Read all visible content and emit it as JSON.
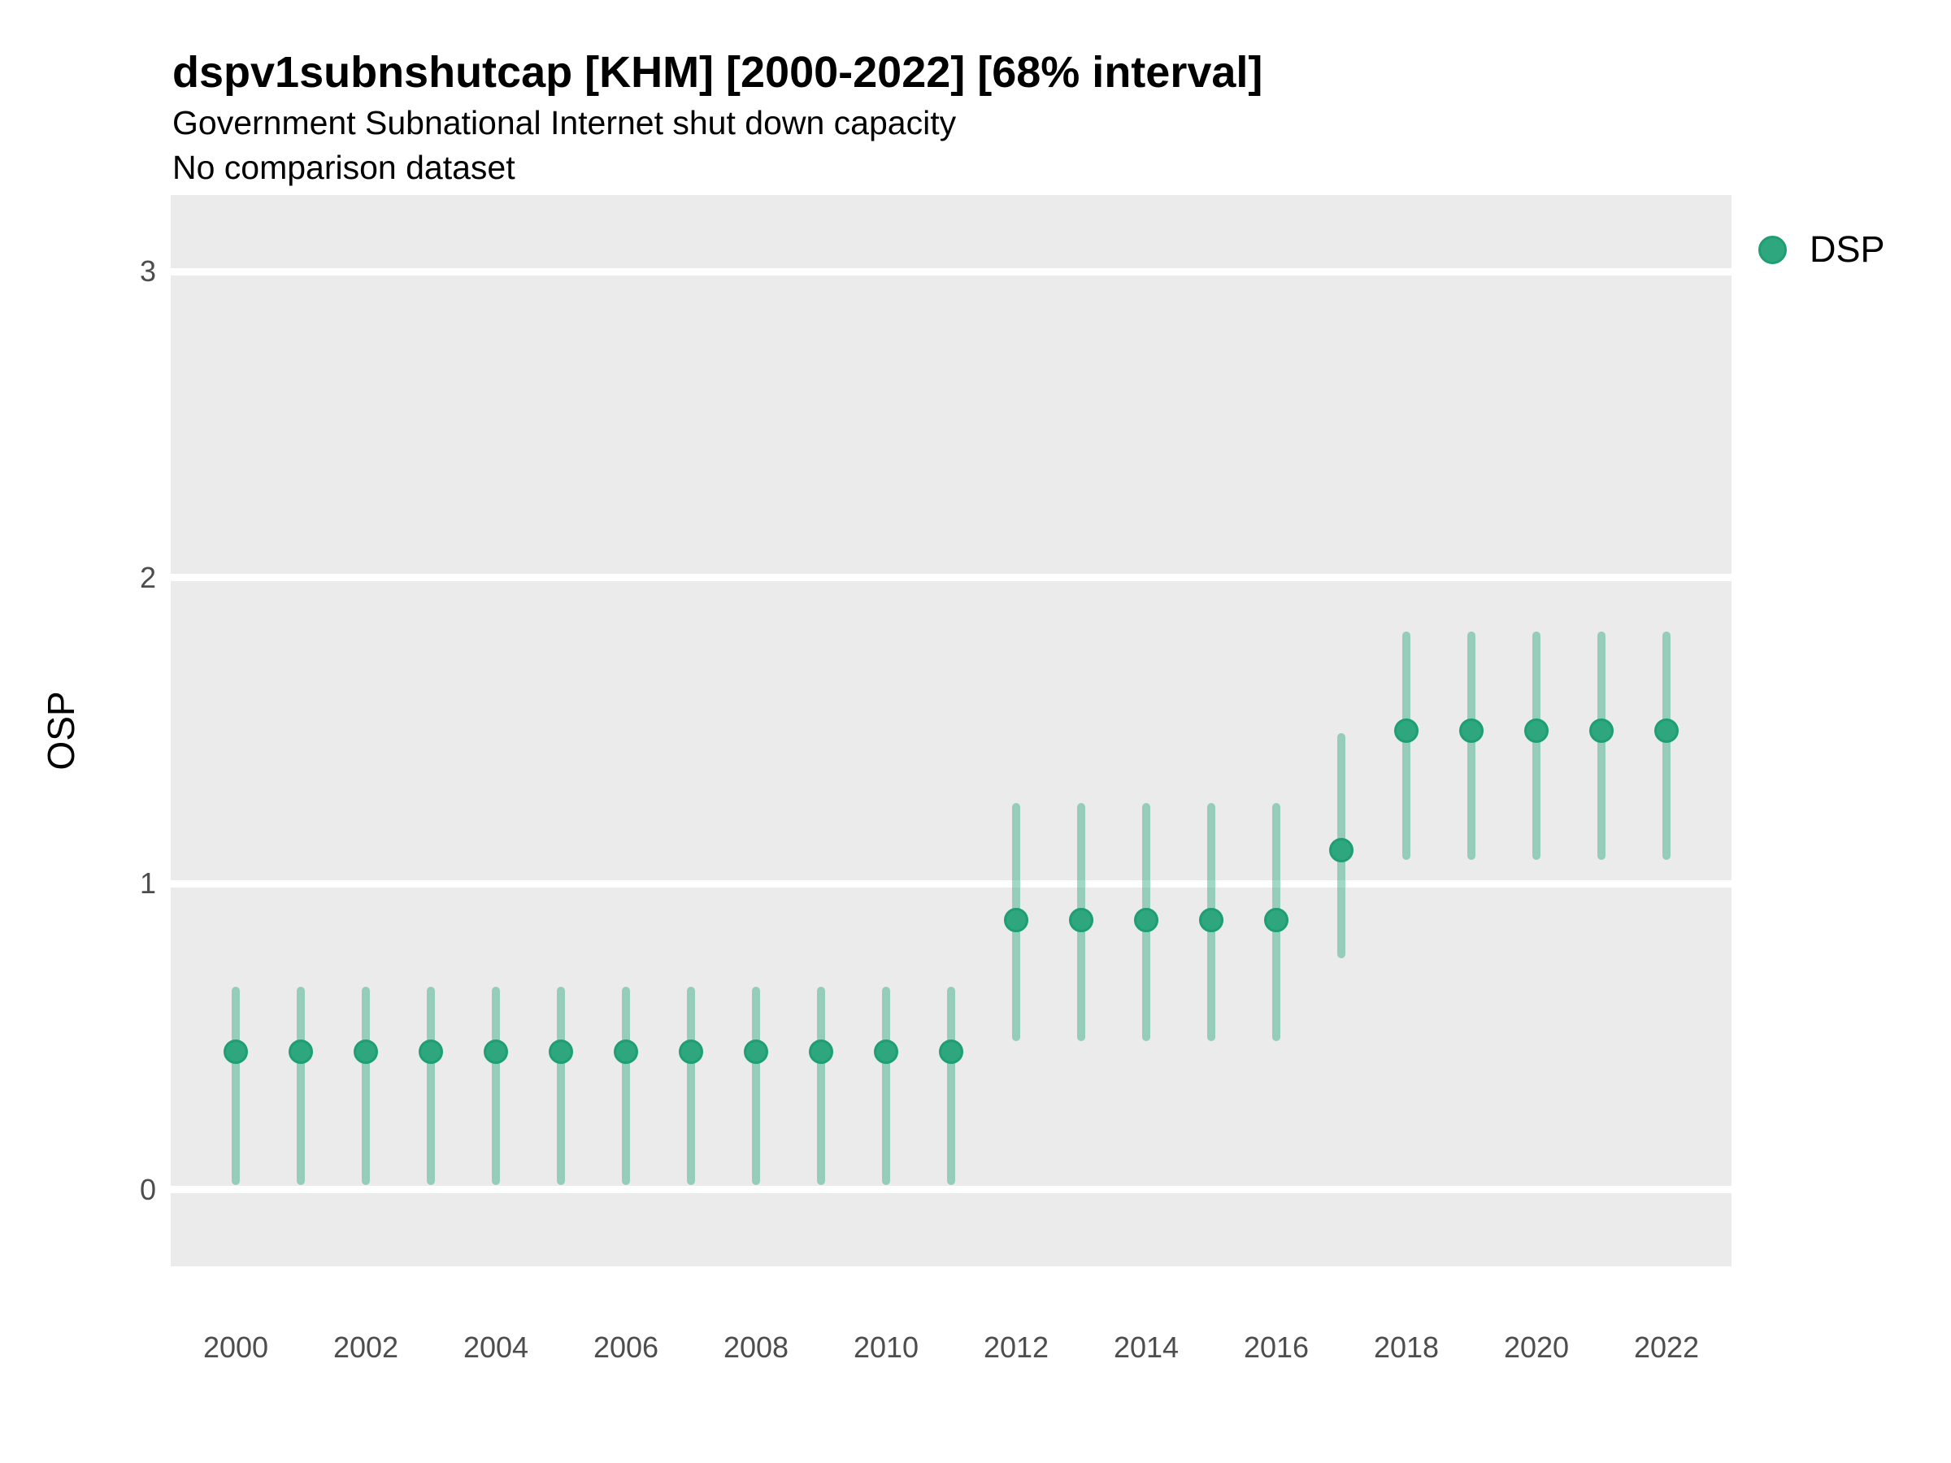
{
  "title": "dspv1subnshutcap [KHM] [2000-2022] [68% interval]",
  "subtitle": "Government Subnational Internet shut down capacity",
  "note": "No comparison dataset",
  "y_axis_title": "OSP",
  "legend": {
    "label": "DSP"
  },
  "colors": {
    "point_fill": "#2FA77E",
    "point_ring": "#1E9E74",
    "interval_line": "rgba(47, 167, 126, 0.45)",
    "panel_background": "#EBEBEB",
    "gridline": "#FFFFFF",
    "tick_text": "#4D4D4D"
  },
  "chart_data": {
    "type": "scatter",
    "mark": "pointrange",
    "title": "dspv1subnshutcap [KHM] [2000-2022] [68% interval]",
    "subtitle": "Government Subnational Internet shut down capacity",
    "note": "No comparison dataset",
    "xlabel": "",
    "ylabel": "OSP",
    "xlim": [
      1999,
      2023
    ],
    "ylim": [
      -0.25,
      3.25
    ],
    "x_ticks": [
      2000,
      2002,
      2004,
      2006,
      2008,
      2010,
      2012,
      2014,
      2016,
      2018,
      2020,
      2022
    ],
    "y_ticks": [
      0,
      1,
      2,
      3
    ],
    "grid": "horizontal-major-only",
    "legend_position": "right-top",
    "interval_level": "68%",
    "series": [
      {
        "name": "DSP",
        "points": [
          {
            "year": 2000,
            "value": 0.45,
            "lo": 0.03,
            "hi": 0.65
          },
          {
            "year": 2001,
            "value": 0.45,
            "lo": 0.03,
            "hi": 0.65
          },
          {
            "year": 2002,
            "value": 0.45,
            "lo": 0.03,
            "hi": 0.65
          },
          {
            "year": 2003,
            "value": 0.45,
            "lo": 0.03,
            "hi": 0.65
          },
          {
            "year": 2004,
            "value": 0.45,
            "lo": 0.03,
            "hi": 0.65
          },
          {
            "year": 2005,
            "value": 0.45,
            "lo": 0.03,
            "hi": 0.65
          },
          {
            "year": 2006,
            "value": 0.45,
            "lo": 0.03,
            "hi": 0.65
          },
          {
            "year": 2007,
            "value": 0.45,
            "lo": 0.03,
            "hi": 0.65
          },
          {
            "year": 2008,
            "value": 0.45,
            "lo": 0.03,
            "hi": 0.65
          },
          {
            "year": 2009,
            "value": 0.45,
            "lo": 0.03,
            "hi": 0.65
          },
          {
            "year": 2010,
            "value": 0.45,
            "lo": 0.03,
            "hi": 0.65
          },
          {
            "year": 2011,
            "value": 0.45,
            "lo": 0.03,
            "hi": 0.65
          },
          {
            "year": 2012,
            "value": 0.88,
            "lo": 0.5,
            "hi": 1.25
          },
          {
            "year": 2013,
            "value": 0.88,
            "lo": 0.5,
            "hi": 1.25
          },
          {
            "year": 2014,
            "value": 0.88,
            "lo": 0.5,
            "hi": 1.25
          },
          {
            "year": 2015,
            "value": 0.88,
            "lo": 0.5,
            "hi": 1.25
          },
          {
            "year": 2016,
            "value": 0.88,
            "lo": 0.5,
            "hi": 1.25
          },
          {
            "year": 2017,
            "value": 1.11,
            "lo": 0.77,
            "hi": 1.48
          },
          {
            "year": 2018,
            "value": 1.5,
            "lo": 1.09,
            "hi": 1.81
          },
          {
            "year": 2019,
            "value": 1.5,
            "lo": 1.09,
            "hi": 1.81
          },
          {
            "year": 2020,
            "value": 1.5,
            "lo": 1.09,
            "hi": 1.81
          },
          {
            "year": 2021,
            "value": 1.5,
            "lo": 1.09,
            "hi": 1.81
          },
          {
            "year": 2022,
            "value": 1.5,
            "lo": 1.09,
            "hi": 1.81
          }
        ]
      }
    ]
  }
}
